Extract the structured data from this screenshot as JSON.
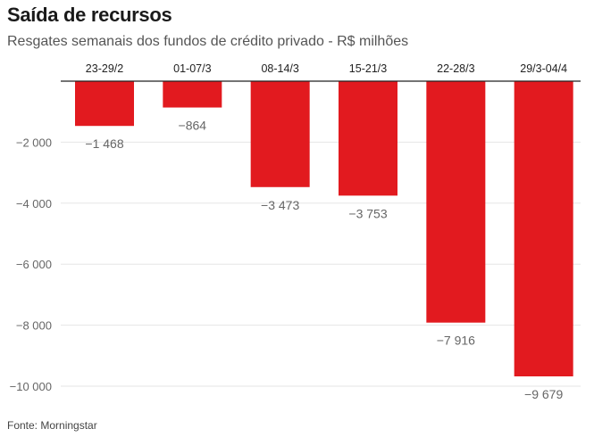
{
  "title": "Saída de recursos",
  "subtitle": "Resgates semanais dos fundos de crédito privado - R$ milhões",
  "source": "Fonte: Morningstar",
  "colors": {
    "bar": "#e21a1f",
    "grid": "#e6e6e6",
    "axis": "#222222"
  },
  "chart_data": {
    "type": "bar",
    "categories": [
      "23-29/2",
      "01-07/3",
      "08-14/3",
      "15-21/3",
      "22-28/3",
      "29/3-04/4"
    ],
    "values": [
      -1468,
      -864,
      -3473,
      -3753,
      -7916,
      -9679
    ],
    "value_labels": [
      "−1 468",
      "−864",
      "−3 473",
      "−3 753",
      "−7 916",
      "−9 679"
    ],
    "title": "Saída de recursos",
    "subtitle": "Resgates semanais dos fundos de crédito privado - R$ milhões",
    "xlabel": "",
    "ylabel": "",
    "ylim": [
      -10000,
      0
    ],
    "yticks": [
      -2000,
      -4000,
      -6000,
      -8000,
      -10000
    ],
    "ytick_labels": [
      "−2 000",
      "−4 000",
      "−6 000",
      "−8 000",
      "−10 000"
    ],
    "grid": true,
    "category_axis_position": "top"
  }
}
